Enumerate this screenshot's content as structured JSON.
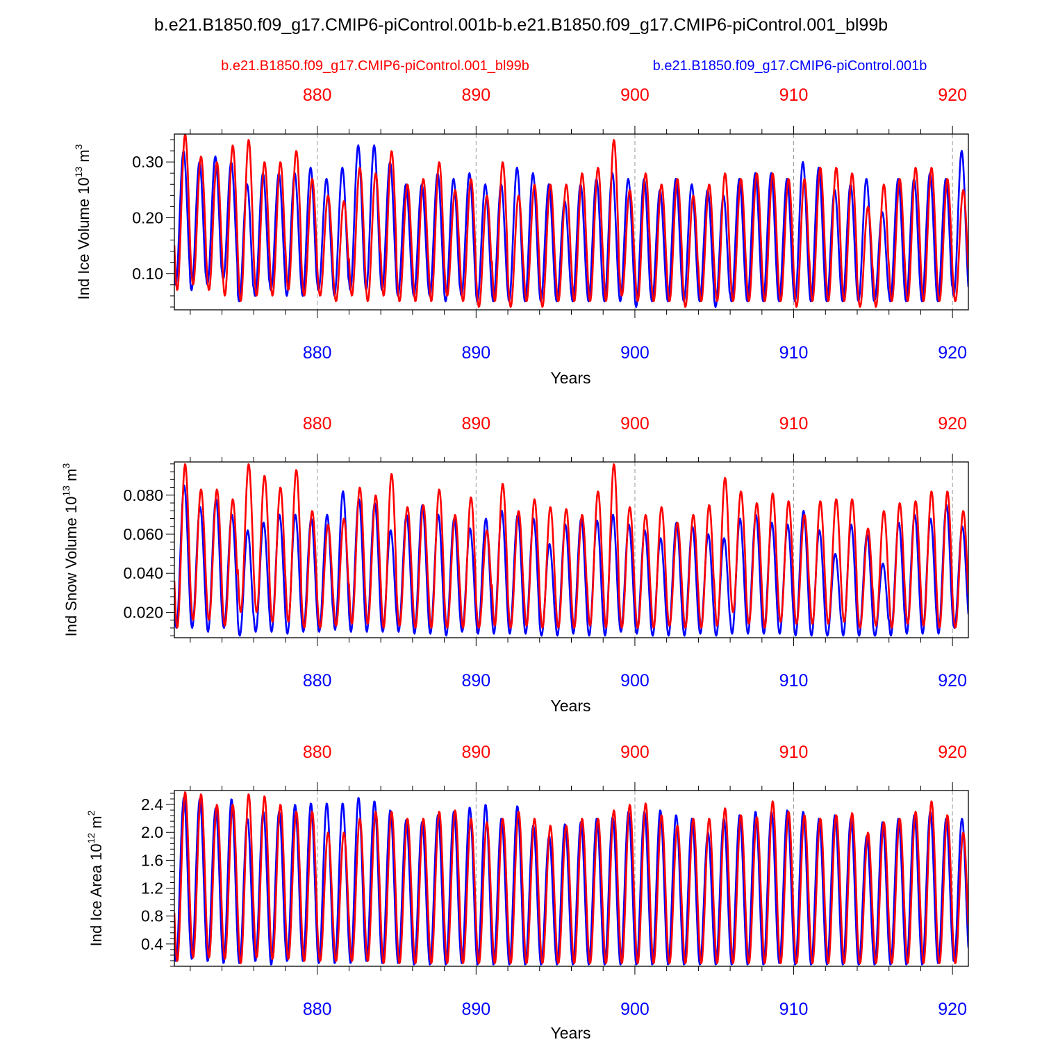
{
  "figure": {
    "title": "b.e21.B1850.f09_g17.CMIP6-piControl.001b-b.e21.B1850.f09_g17.CMIP6-piControl.001_bl99b",
    "legend": {
      "red_label": "b.e21.B1850.f09_g17.CMIP6-piControl.001_bl99b",
      "blue_label": "b.e21.B1850.f09_g17.CMIP6-piControl.001b"
    },
    "colors": {
      "red": "#ff0000",
      "blue": "#0000ff",
      "axis": "#000000",
      "grid": "#999999"
    }
  },
  "chart_data": [
    {
      "type": "line",
      "title": "",
      "xlabel": "Years",
      "ylabel_main": "Ind Ice Volume 10",
      "ylabel_exp": "13",
      "ylabel_unit": " m",
      "ylabel_unit_exp": "3",
      "xlim": [
        871.0,
        921.0
      ],
      "ylim": [
        0.035,
        0.35
      ],
      "x_ticks": [
        880,
        890,
        900,
        910,
        920
      ],
      "x_tick_labels": [
        "880",
        "890",
        "900",
        "910",
        "920"
      ],
      "y_ticks": [
        0.1,
        0.2,
        0.3
      ],
      "y_tick_labels": [
        "0.10",
        "0.20",
        "0.30"
      ],
      "series": [
        {
          "name": "b.e21.B1850.f09_g17.CMIP6-piControl.001b",
          "color": "#0000ff",
          "x_start": 871.0,
          "period": 1.0,
          "peak_phase": 0.58,
          "peaks": [
            0.32,
            0.3,
            0.31,
            0.3,
            0.26,
            0.28,
            0.28,
            0.28,
            0.29,
            0.27,
            0.29,
            0.33,
            0.33,
            0.3,
            0.26,
            0.26,
            0.28,
            0.27,
            0.28,
            0.26,
            0.26,
            0.29,
            0.28,
            0.26,
            0.23,
            0.26,
            0.27,
            0.28,
            0.27,
            0.27,
            0.25,
            0.27,
            0.26,
            0.25,
            0.24,
            0.27,
            0.28,
            0.28,
            0.27,
            0.3,
            0.29,
            0.25,
            0.26,
            0.27,
            0.21,
            0.27,
            0.27,
            0.28,
            0.27,
            0.32
          ],
          "troughs": [
            0.08,
            0.07,
            0.08,
            0.09,
            0.05,
            0.06,
            0.07,
            0.06,
            0.06,
            0.07,
            0.06,
            0.07,
            0.07,
            0.07,
            0.06,
            0.06,
            0.06,
            0.05,
            0.06,
            0.05,
            0.05,
            0.05,
            0.05,
            0.05,
            0.05,
            0.05,
            0.05,
            0.05,
            0.05,
            0.04,
            0.05,
            0.05,
            0.05,
            0.05,
            0.04,
            0.05,
            0.05,
            0.05,
            0.05,
            0.05,
            0.05,
            0.05,
            0.05,
            0.05,
            0.05,
            0.05,
            0.05,
            0.05,
            0.05,
            0.06
          ]
        },
        {
          "name": "b.e21.B1850.f09_g17.CMIP6-piControl.001_bl99b",
          "color": "#ff0000",
          "x_start": 871.0,
          "period": 1.0,
          "peak_phase": 0.68,
          "peaks": [
            0.35,
            0.31,
            0.3,
            0.33,
            0.34,
            0.3,
            0.3,
            0.32,
            0.27,
            0.24,
            0.23,
            0.29,
            0.28,
            0.32,
            0.26,
            0.27,
            0.3,
            0.25,
            0.27,
            0.24,
            0.3,
            0.24,
            0.26,
            0.26,
            0.26,
            0.28,
            0.29,
            0.34,
            0.25,
            0.28,
            0.26,
            0.27,
            0.24,
            0.26,
            0.28,
            0.27,
            0.28,
            0.28,
            0.27,
            0.27,
            0.29,
            0.29,
            0.28,
            0.22,
            0.26,
            0.27,
            0.29,
            0.29,
            0.27,
            0.25
          ],
          "troughs": [
            0.07,
            0.08,
            0.07,
            0.06,
            0.05,
            0.06,
            0.06,
            0.07,
            0.06,
            0.06,
            0.05,
            0.06,
            0.05,
            0.06,
            0.05,
            0.05,
            0.05,
            0.06,
            0.05,
            0.04,
            0.05,
            0.04,
            0.05,
            0.04,
            0.05,
            0.05,
            0.05,
            0.05,
            0.06,
            0.05,
            0.05,
            0.05,
            0.04,
            0.05,
            0.05,
            0.05,
            0.05,
            0.05,
            0.05,
            0.04,
            0.05,
            0.05,
            0.05,
            0.04,
            0.04,
            0.05,
            0.05,
            0.05,
            0.05,
            0.05
          ]
        }
      ]
    },
    {
      "type": "line",
      "title": "",
      "xlabel": "Years",
      "ylabel_main": "Ind Snow Volume 10",
      "ylabel_exp": "13",
      "ylabel_unit": " m",
      "ylabel_unit_exp": "3",
      "xlim": [
        871.0,
        921.0
      ],
      "ylim": [
        0.007,
        0.097
      ],
      "x_ticks": [
        880,
        890,
        900,
        910,
        920
      ],
      "x_tick_labels": [
        "880",
        "890",
        "900",
        "910",
        "920"
      ],
      "y_ticks": [
        0.02,
        0.04,
        0.06,
        0.08
      ],
      "y_tick_labels": [
        "0.020",
        "0.040",
        "0.060",
        "0.080"
      ],
      "series": [
        {
          "name": "b.e21.B1850.f09_g17.CMIP6-piControl.001b",
          "color": "#0000ff",
          "x_start": 871.0,
          "period": 1.0,
          "peak_phase": 0.62,
          "peaks": [
            0.085,
            0.074,
            0.078,
            0.07,
            0.062,
            0.066,
            0.07,
            0.07,
            0.068,
            0.07,
            0.082,
            0.078,
            0.076,
            0.062,
            0.07,
            0.075,
            0.07,
            0.068,
            0.063,
            0.068,
            0.072,
            0.07,
            0.068,
            0.055,
            0.065,
            0.068,
            0.067,
            0.07,
            0.065,
            0.062,
            0.058,
            0.066,
            0.064,
            0.06,
            0.058,
            0.068,
            0.07,
            0.066,
            0.065,
            0.072,
            0.062,
            0.05,
            0.065,
            0.06,
            0.045,
            0.066,
            0.07,
            0.068,
            0.075,
            0.064
          ],
          "troughs": [
            0.012,
            0.012,
            0.01,
            0.012,
            0.008,
            0.01,
            0.01,
            0.009,
            0.01,
            0.01,
            0.011,
            0.01,
            0.01,
            0.01,
            0.01,
            0.009,
            0.009,
            0.008,
            0.01,
            0.009,
            0.009,
            0.009,
            0.009,
            0.008,
            0.008,
            0.009,
            0.008,
            0.008,
            0.01,
            0.009,
            0.008,
            0.008,
            0.008,
            0.009,
            0.008,
            0.009,
            0.009,
            0.009,
            0.009,
            0.008,
            0.008,
            0.008,
            0.008,
            0.008,
            0.008,
            0.008,
            0.009,
            0.009,
            0.009,
            0.012
          ]
        },
        {
          "name": "b.e21.B1850.f09_g17.CMIP6-piControl.001_bl99b",
          "color": "#ff0000",
          "x_start": 871.0,
          "period": 1.0,
          "peak_phase": 0.68,
          "peaks": [
            0.096,
            0.083,
            0.083,
            0.078,
            0.096,
            0.09,
            0.084,
            0.093,
            0.072,
            0.065,
            0.068,
            0.084,
            0.08,
            0.091,
            0.074,
            0.075,
            0.083,
            0.07,
            0.079,
            0.062,
            0.086,
            0.072,
            0.078,
            0.074,
            0.073,
            0.07,
            0.082,
            0.096,
            0.074,
            0.07,
            0.074,
            0.066,
            0.07,
            0.075,
            0.089,
            0.082,
            0.076,
            0.081,
            0.077,
            0.07,
            0.077,
            0.078,
            0.078,
            0.063,
            0.072,
            0.076,
            0.077,
            0.082,
            0.082,
            0.072
          ],
          "troughs": [
            0.012,
            0.016,
            0.016,
            0.013,
            0.02,
            0.02,
            0.015,
            0.015,
            0.012,
            0.012,
            0.013,
            0.014,
            0.014,
            0.012,
            0.013,
            0.012,
            0.012,
            0.012,
            0.012,
            0.012,
            0.013,
            0.012,
            0.013,
            0.012,
            0.012,
            0.012,
            0.013,
            0.012,
            0.012,
            0.012,
            0.012,
            0.013,
            0.012,
            0.012,
            0.013,
            0.02,
            0.014,
            0.012,
            0.015,
            0.014,
            0.014,
            0.014,
            0.015,
            0.012,
            0.013,
            0.012,
            0.014,
            0.013,
            0.012,
            0.012
          ]
        }
      ]
    },
    {
      "type": "line",
      "title": "",
      "xlabel": "Years",
      "ylabel_main": "Ind Ice Area 10",
      "ylabel_exp": "12",
      "ylabel_unit": " m",
      "ylabel_unit_exp": "2",
      "xlim": [
        871.0,
        921.0
      ],
      "ylim": [
        0.08,
        2.6
      ],
      "x_ticks": [
        880,
        890,
        900,
        910,
        920
      ],
      "x_tick_labels": [
        "880",
        "890",
        "900",
        "910",
        "920"
      ],
      "y_ticks": [
        0.4,
        0.8,
        1.2,
        1.6,
        2.0,
        2.4
      ],
      "y_tick_labels": [
        "0.4",
        "0.8",
        "1.2",
        "1.6",
        "2.0",
        "2.4"
      ],
      "series": [
        {
          "name": "b.e21.B1850.f09_g17.CMIP6-piControl.001b",
          "color": "#0000ff",
          "x_start": 871.0,
          "period": 1.0,
          "peak_phase": 0.6,
          "peaks": [
            2.5,
            2.48,
            2.35,
            2.48,
            2.2,
            2.3,
            2.3,
            2.4,
            2.42,
            2.42,
            2.42,
            2.5,
            2.45,
            2.32,
            2.18,
            2.15,
            2.25,
            2.3,
            2.36,
            2.4,
            2.2,
            2.38,
            2.1,
            1.95,
            2.12,
            2.15,
            2.2,
            2.22,
            2.3,
            2.3,
            2.32,
            2.25,
            2.2,
            2.0,
            2.2,
            2.25,
            2.3,
            2.3,
            2.32,
            2.3,
            2.2,
            2.25,
            2.2,
            1.95,
            2.15,
            2.2,
            2.25,
            2.3,
            2.2,
            2.2
          ],
          "troughs": [
            0.15,
            0.18,
            0.15,
            0.12,
            0.12,
            0.15,
            0.1,
            0.15,
            0.15,
            0.12,
            0.12,
            0.12,
            0.15,
            0.12,
            0.12,
            0.1,
            0.1,
            0.1,
            0.12,
            0.1,
            0.1,
            0.1,
            0.1,
            0.1,
            0.1,
            0.1,
            0.1,
            0.1,
            0.1,
            0.1,
            0.1,
            0.1,
            0.1,
            0.1,
            0.1,
            0.1,
            0.1,
            0.1,
            0.12,
            0.1,
            0.1,
            0.1,
            0.1,
            0.1,
            0.1,
            0.1,
            0.1,
            0.1,
            0.12,
            0.15
          ]
        },
        {
          "name": "b.e21.B1850.f09_g17.CMIP6-piControl.001_bl99b",
          "color": "#ff0000",
          "x_start": 871.0,
          "period": 1.0,
          "peak_phase": 0.68,
          "peaks": [
            2.58,
            2.55,
            2.4,
            2.4,
            2.55,
            2.52,
            2.4,
            2.3,
            2.3,
            2.0,
            2.0,
            2.2,
            2.3,
            2.3,
            2.2,
            2.2,
            2.3,
            2.32,
            2.2,
            2.15,
            2.2,
            2.3,
            2.2,
            2.1,
            2.1,
            2.2,
            2.2,
            2.32,
            2.4,
            2.42,
            2.25,
            2.1,
            2.2,
            2.2,
            2.35,
            2.25,
            2.22,
            2.45,
            2.3,
            2.25,
            2.2,
            2.25,
            2.28,
            2.0,
            2.15,
            2.2,
            2.3,
            2.45,
            2.25,
            2.0
          ],
          "troughs": [
            0.15,
            0.2,
            0.2,
            0.18,
            0.12,
            0.2,
            0.18,
            0.18,
            0.15,
            0.15,
            0.15,
            0.15,
            0.15,
            0.12,
            0.12,
            0.12,
            0.12,
            0.12,
            0.12,
            0.12,
            0.12,
            0.12,
            0.12,
            0.12,
            0.12,
            0.12,
            0.12,
            0.12,
            0.12,
            0.12,
            0.12,
            0.12,
            0.12,
            0.12,
            0.12,
            0.12,
            0.12,
            0.12,
            0.12,
            0.12,
            0.12,
            0.12,
            0.12,
            0.12,
            0.12,
            0.12,
            0.12,
            0.12,
            0.12,
            0.12
          ]
        }
      ]
    }
  ]
}
